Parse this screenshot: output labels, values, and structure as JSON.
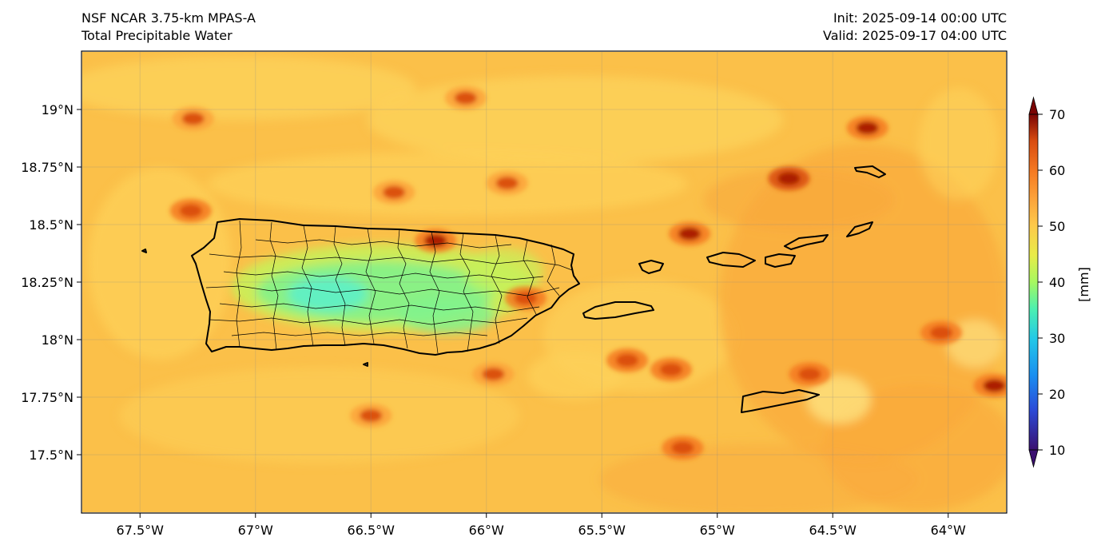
{
  "header": {
    "model": "NSF NCAR 3.75-km MPAS-A",
    "field": "Total Precipitable Water",
    "init": "Init: 2025-09-14 00:00 UTC",
    "valid": "Valid: 2025-09-17 04:00 UTC"
  },
  "map": {
    "lon_range": [
      -67.75,
      -63.75
    ],
    "lat_range": [
      17.25,
      19.25
    ],
    "lon_ticks": [
      {
        "value": -67.5,
        "label": "67.5°W"
      },
      {
        "value": -67.0,
        "label": "67°W"
      },
      {
        "value": -66.5,
        "label": "66.5°W"
      },
      {
        "value": -66.0,
        "label": "66°W"
      },
      {
        "value": -65.5,
        "label": "65.5°W"
      },
      {
        "value": -65.0,
        "label": "65°W"
      },
      {
        "value": -64.5,
        "label": "64.5°W"
      },
      {
        "value": -64.0,
        "label": "64°W"
      }
    ],
    "lat_ticks": [
      {
        "value": 19.0,
        "label": "19°N"
      },
      {
        "value": 18.75,
        "label": "18.75°N"
      },
      {
        "value": 18.5,
        "label": "18.5°N"
      },
      {
        "value": 18.25,
        "label": "18.25°N"
      },
      {
        "value": 18.0,
        "label": "18°N"
      },
      {
        "value": 17.75,
        "label": "17.75°N"
      },
      {
        "value": 17.5,
        "label": "17.5°N"
      }
    ],
    "background_color": "#fbc049",
    "gridlines": true
  },
  "colorbar": {
    "label": "[mm]",
    "min": 10,
    "max": 70,
    "ticks": [
      10,
      20,
      30,
      40,
      50,
      60,
      70
    ],
    "extend": "both",
    "colors": [
      "#3b0f70",
      "#2b4bd8",
      "#1a8df0",
      "#22c8e8",
      "#4cf0b0",
      "#a6f860",
      "#e8ec48",
      "#fec94a",
      "#fca23a",
      "#f57a22",
      "#d94c10",
      "#a81a04",
      "#7a0403"
    ]
  },
  "features": {
    "pr_moist_core_value": 35,
    "hotspots": [
      {
        "name": "hotspot-68.3w",
        "lon": -67.28,
        "lat": 18.56,
        "value": 62
      },
      {
        "name": "hotspot-67.25w",
        "lon": -67.27,
        "lat": 18.96,
        "value": 60
      },
      {
        "name": "hotspot-66.35w",
        "lon": -66.4,
        "lat": 18.64,
        "value": 60
      },
      {
        "name": "hotspot-66.1w",
        "lon": -66.09,
        "lat": 19.05,
        "value": 60
      },
      {
        "name": "hotspot-65.9w",
        "lon": -65.91,
        "lat": 18.68,
        "value": 58
      },
      {
        "name": "hotspot-65.1w",
        "lon": -65.12,
        "lat": 18.46,
        "value": 63
      },
      {
        "name": "hotspot-64.7w",
        "lon": -64.69,
        "lat": 18.7,
        "value": 66
      },
      {
        "name": "hotspot-64.35w",
        "lon": -64.35,
        "lat": 18.92,
        "value": 65
      },
      {
        "name": "hotspot-66.25w",
        "lon": -66.22,
        "lat": 18.43,
        "value": 63
      },
      {
        "name": "hotspot-65.85w",
        "lon": -65.83,
        "lat": 18.18,
        "value": 62
      },
      {
        "name": "hotspot-65.4w",
        "lon": -65.39,
        "lat": 17.91,
        "value": 61
      },
      {
        "name": "hotspot-65.2w",
        "lon": -65.2,
        "lat": 17.87,
        "value": 61
      },
      {
        "name": "hotspot-65.15w",
        "lon": -65.15,
        "lat": 17.53,
        "value": 62
      },
      {
        "name": "hotspot-64.6w",
        "lon": -64.6,
        "lat": 17.85,
        "value": 61
      },
      {
        "name": "hotspot-64.05w",
        "lon": -64.03,
        "lat": 18.03,
        "value": 61
      },
      {
        "name": "hotspot-66.5w",
        "lon": -66.5,
        "lat": 17.67,
        "value": 60
      },
      {
        "name": "hotspot-65.95w",
        "lon": -65.97,
        "lat": 17.85,
        "value": 60
      },
      {
        "name": "hotspot-63.8w",
        "lon": -63.8,
        "lat": 17.8,
        "value": 63
      }
    ]
  }
}
